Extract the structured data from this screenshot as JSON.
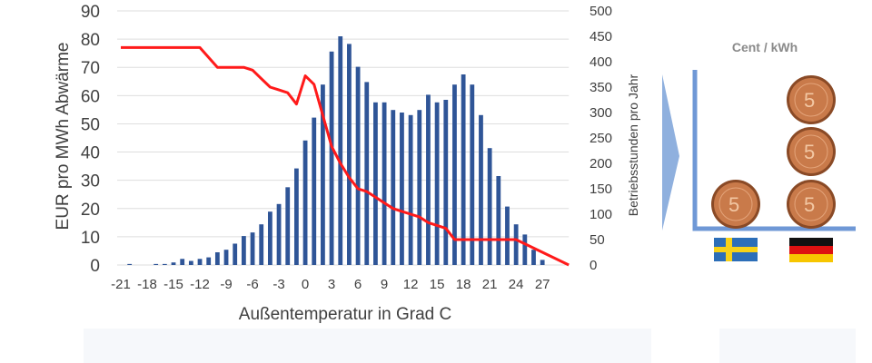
{
  "colors": {
    "bars": "#2f5597",
    "line": "#ff1a1a",
    "grid": "#dedede",
    "arrow": "#8fb0de",
    "bracket": "#6f98d6",
    "cent_label": "#8a8a8a",
    "coin_face": "#c97a4a",
    "coin_rim": "#8a4a26"
  },
  "chart_data": {
    "type": "bar+line",
    "xlabel": "Außentemperatur in Grad C",
    "ylabel_left": "EUR pro MWh Abwärme",
    "ylabel_right": "Betriebsstunden pro Jahr",
    "xlim": [
      -21,
      30
    ],
    "ylim_left": [
      0,
      90
    ],
    "ylim_right": [
      0,
      500
    ],
    "x_ticks": [
      "-21",
      "-18",
      "-15",
      "-12",
      "-9",
      "-6",
      "-3",
      "0",
      "3",
      "6",
      "9",
      "12",
      "15",
      "18",
      "21",
      "24",
      "27"
    ],
    "left_ticks": [
      "0",
      "10",
      "20",
      "30",
      "40",
      "50",
      "60",
      "70",
      "80",
      "90"
    ],
    "right_ticks": [
      "0",
      "50",
      "100",
      "150",
      "200",
      "250",
      "300",
      "350",
      "400",
      "450",
      "500"
    ],
    "grid": "horizontal",
    "bars": {
      "axis": "right",
      "x": [
        -21,
        -20,
        -19,
        -18,
        -17,
        -16,
        -15,
        -14,
        -13,
        -12,
        -11,
        -10,
        -9,
        -8,
        -7,
        -6,
        -5,
        -4,
        -3,
        -2,
        -1,
        0,
        1,
        2,
        3,
        4,
        5,
        6,
        7,
        8,
        9,
        10,
        11,
        12,
        13,
        14,
        15,
        16,
        17,
        18,
        19,
        20,
        21,
        22,
        23,
        24,
        25,
        26,
        27,
        28,
        29
      ],
      "values": [
        0,
        2,
        0,
        0,
        2,
        2,
        5,
        12,
        8,
        12,
        15,
        25,
        30,
        42,
        57,
        64,
        80,
        105,
        120,
        153,
        190,
        245,
        290,
        355,
        420,
        450,
        435,
        390,
        360,
        320,
        320,
        305,
        300,
        295,
        305,
        335,
        320,
        325,
        355,
        375,
        355,
        295,
        230,
        175,
        115,
        80,
        60,
        30,
        10,
        0,
        0
      ]
    },
    "line": {
      "axis": "left",
      "x": [
        -21,
        -16,
        -12,
        -10,
        -7,
        -6,
        -5,
        -4,
        -3,
        -2,
        -1,
        0,
        1,
        2,
        3,
        4,
        5,
        6,
        7,
        8,
        9,
        10,
        11,
        12,
        13,
        14,
        15,
        16,
        17,
        18,
        19,
        20,
        21,
        24,
        30
      ],
      "values": [
        77,
        77,
        77,
        70,
        70,
        69,
        66,
        63,
        62,
        61,
        57,
        67,
        64,
        53,
        42,
        36,
        31,
        27,
        26,
        24,
        22,
        20,
        19,
        18,
        17,
        15,
        14,
        13,
        9,
        9,
        9,
        9,
        9,
        9,
        0
      ]
    }
  },
  "panel": {
    "title": "Cent / kWh",
    "countries": [
      {
        "flag": "sweden-flag",
        "coins": 1
      },
      {
        "flag": "germany-flag",
        "coins": 3
      }
    ],
    "coin_text": "5"
  }
}
